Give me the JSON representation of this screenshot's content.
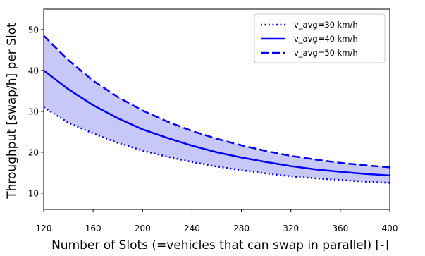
{
  "chart_data": {
    "type": "line",
    "title": "",
    "xlabel": "Number of Slots (=vehicles that can swap in parallel) [-]",
    "ylabel": "Throughput [swap/h] per Slot",
    "xlim": [
      120,
      400
    ],
    "ylim": [
      6,
      55
    ],
    "xticks": [
      120,
      160,
      200,
      240,
      280,
      320,
      360,
      400
    ],
    "yticks": [
      10,
      20,
      30,
      40,
      50
    ],
    "grid": false,
    "legend_position": "top-right",
    "x": [
      120,
      140,
      160,
      180,
      200,
      220,
      240,
      260,
      280,
      300,
      320,
      340,
      360,
      380,
      400
    ],
    "series": [
      {
        "name": "v_avg=30 km/h",
        "style": "dotted",
        "color": "#0000ff",
        "values": [
          31,
          27.2,
          24.6,
          22.3,
          20.4,
          18.9,
          17.6,
          16.5,
          15.6,
          14.8,
          14.1,
          13.6,
          13.2,
          12.8,
          12.5
        ]
      },
      {
        "name": "v_avg=40 km/h",
        "style": "solid",
        "color": "#0000ff",
        "values": [
          40,
          35.4,
          31.5,
          28.3,
          25.6,
          23.5,
          21.6,
          20.0,
          18.7,
          17.6,
          16.6,
          15.8,
          15.2,
          14.7,
          14.3
        ]
      },
      {
        "name": "v_avg=50 km/h",
        "style": "dashed",
        "color": "#0000ff",
        "values": [
          48.5,
          42.5,
          37.5,
          33.5,
          30.2,
          27.5,
          25.2,
          23.3,
          21.7,
          20.3,
          19.1,
          18.2,
          17.4,
          16.8,
          16.3
        ]
      }
    ],
    "band": {
      "between": [
        "v_avg=30 km/h",
        "v_avg=50 km/h"
      ],
      "fill_color": "#c8c8f8"
    }
  }
}
